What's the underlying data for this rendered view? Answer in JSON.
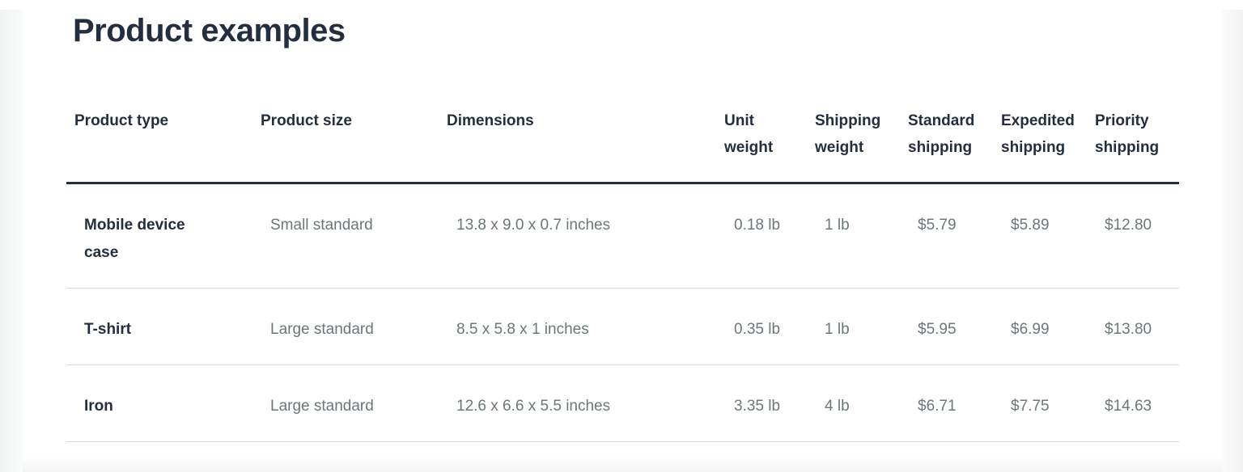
{
  "page": {
    "title": "Product examples"
  },
  "table": {
    "columns": [
      {
        "key": "product_type",
        "label": "Product type"
      },
      {
        "key": "product_size",
        "label": "Product size"
      },
      {
        "key": "dimensions",
        "label": "Dimensions"
      },
      {
        "key": "unit_weight",
        "label": "Unit weight"
      },
      {
        "key": "shipping_weight",
        "label": "Shipping weight"
      },
      {
        "key": "standard_shipping",
        "label": "Standard shipping"
      },
      {
        "key": "expedited_shipping",
        "label": "Expedited shipping"
      },
      {
        "key": "priority_shipping",
        "label": "Priority shipping"
      }
    ],
    "rows": [
      {
        "product_type": "Mobile device case",
        "product_size": "Small standard",
        "dimensions": "13.8 x 9.0 x 0.7 inches",
        "unit_weight": "0.18 lb",
        "shipping_weight": "1 lb",
        "standard_shipping": "$5.79",
        "expedited_shipping": "$5.89",
        "priority_shipping": "$12.80"
      },
      {
        "product_type": "T-shirt",
        "product_size": "Large standard",
        "dimensions": "8.5 x 5.8 x 1 inches",
        "unit_weight": "0.35 lb",
        "shipping_weight": "1 lb",
        "standard_shipping": "$5.95",
        "expedited_shipping": "$6.99",
        "priority_shipping": "$13.80"
      },
      {
        "product_type": "Iron",
        "product_size": "Large standard",
        "dimensions": "12.6 x 6.6 x 5.5 inches",
        "unit_weight": "3.35 lb",
        "shipping_weight": "4 lb",
        "standard_shipping": "$6.71",
        "expedited_shipping": "$7.75",
        "priority_shipping": "$14.63"
      }
    ]
  },
  "colors": {
    "heading": "#232f3e",
    "body_text": "#6b7778",
    "header_rule": "#232f3e",
    "row_rule": "#d5dbdb",
    "gutter": "#f4f5f5"
  }
}
